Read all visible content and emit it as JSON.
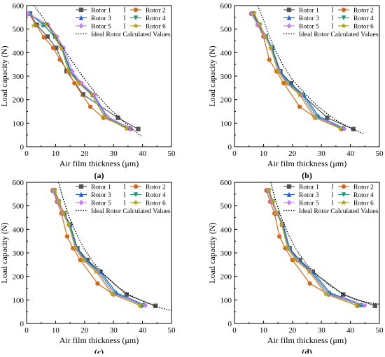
{
  "figure": {
    "panels_label_note": "",
    "colors": {
      "Rotor 1": "#555555",
      "Rotor 2": "#d2691e",
      "Rotor 3": "#1f5fd6",
      "Rotor 4": "#1e9a7a",
      "Rotor 5": "#c77ee6",
      "Rotor 6": "#b5a31c",
      "Ideal": "#000000"
    }
  },
  "chart_data": [
    {
      "type": "line",
      "panel_label": "(a)",
      "xlabel": "Air film thickness (μm)",
      "ylabel": "Load capacity (N)",
      "xlim": [
        0,
        50
      ],
      "ylim": [
        0,
        600
      ],
      "xticks": [
        0,
        10,
        20,
        30,
        40,
        50
      ],
      "yticks": [
        0,
        100,
        200,
        300,
        400,
        500,
        600
      ],
      "legend_position": "top-right",
      "series": [
        {
          "name": "Rotor 1",
          "marker": "square",
          "x": [
            1.2,
            3.5,
            7.2,
            10.2,
            13.8,
            19.5,
            31.5,
            38.5
          ],
          "y": [
            566,
            518,
            468,
            420,
            321,
            222,
            123,
            75
          ]
        },
        {
          "name": "Rotor 2",
          "marker": "circle",
          "x": [
            0.8,
            6.0,
            9.2,
            11.5,
            14.3,
            16.5,
            22.0,
            26.5,
            36.0
          ],
          "y": [
            566,
            465,
            420,
            370,
            320,
            270,
            170,
            123,
            75
          ]
        },
        {
          "name": "Rotor 3",
          "marker": "triangle-up",
          "x": [
            1.0,
            5.8,
            9.8,
            12.3,
            15.3,
            18.5,
            23.0,
            27.5,
            35.5
          ],
          "y": [
            566,
            518,
            468,
            420,
            320,
            270,
            220,
            130,
            80
          ]
        },
        {
          "name": "Rotor 4",
          "marker": "triangle-down",
          "x": [
            1.2,
            6.0,
            9.5,
            12.0,
            15.0,
            18.0,
            22.5,
            27.0,
            35.0
          ],
          "y": [
            566,
            518,
            468,
            420,
            320,
            270,
            220,
            128,
            77
          ]
        },
        {
          "name": "Rotor 5",
          "marker": "diamond",
          "x": [
            0.6,
            7.5,
            10.5,
            12.8,
            15.8,
            19.0,
            23.5,
            28.0,
            36.0
          ],
          "y": [
            566,
            518,
            468,
            420,
            320,
            270,
            220,
            125,
            77
          ]
        },
        {
          "name": "Rotor 6",
          "marker": "star",
          "x": [
            2.5,
            7.0,
            10.0,
            12.0,
            14.5,
            18.0,
            22.5,
            27.0,
            34.5
          ],
          "y": [
            515,
            520,
            468,
            420,
            320,
            270,
            220,
            125,
            77
          ]
        },
        {
          "name": "Ideal Rotor Calculated Values",
          "style": "dotted",
          "x": [
            2.5,
            5,
            8,
            11,
            14,
            17,
            20,
            24,
            28,
            32,
            36,
            39.5
          ],
          "y": [
            600,
            560,
            505,
            450,
            395,
            340,
            288,
            225,
            170,
            123,
            80,
            45
          ]
        }
      ]
    },
    {
      "type": "line",
      "panel_label": "(b)",
      "xlabel": "Air film thickness (μm)",
      "ylabel": "Load capacity (N)",
      "xlim": [
        0,
        50
      ],
      "ylim": [
        0,
        600
      ],
      "xticks": [
        0,
        10,
        20,
        30,
        40,
        50
      ],
      "yticks": [
        0,
        100,
        200,
        300,
        400,
        500,
        600
      ],
      "legend_position": "top-right",
      "series": [
        {
          "name": "Rotor 1",
          "marker": "square",
          "x": [
            6.5,
            8.5,
            10.8,
            13.0,
            15.8,
            19.5,
            23.5,
            32.0,
            41.0
          ],
          "y": [
            566,
            518,
            468,
            420,
            320,
            270,
            220,
            123,
            75
          ]
        },
        {
          "name": "Rotor 2",
          "marker": "circle",
          "x": [
            5.8,
            8.0,
            10.0,
            12.0,
            14.5,
            17.0,
            22.5,
            28.0,
            37.0
          ],
          "y": [
            566,
            518,
            468,
            370,
            320,
            270,
            170,
            123,
            75
          ]
        },
        {
          "name": "Rotor 3",
          "marker": "triangle-up",
          "x": [
            6.0,
            8.5,
            11.0,
            13.0,
            15.8,
            19.0,
            24.0,
            29.0,
            37.5
          ],
          "y": [
            566,
            518,
            468,
            420,
            320,
            270,
            220,
            130,
            80
          ]
        },
        {
          "name": "Rotor 4",
          "marker": "triangle-down",
          "x": [
            6.2,
            8.3,
            10.8,
            12.8,
            15.5,
            18.5,
            23.5,
            28.5,
            37.0
          ],
          "y": [
            566,
            518,
            468,
            420,
            320,
            270,
            220,
            128,
            77
          ]
        },
        {
          "name": "Rotor 5",
          "marker": "diamond",
          "x": [
            6.0,
            8.0,
            10.5,
            12.5,
            15.3,
            18.2,
            23.0,
            28.0,
            38.0
          ],
          "y": [
            566,
            518,
            468,
            420,
            320,
            270,
            220,
            125,
            77
          ]
        },
        {
          "name": "Rotor 6",
          "marker": "star",
          "x": [
            6.8,
            8.8,
            10.8,
            12.5,
            15.0,
            18.0,
            22.5,
            27.5,
            36.5
          ],
          "y": [
            566,
            518,
            468,
            420,
            320,
            270,
            220,
            125,
            77
          ]
        },
        {
          "name": "Ideal Rotor Calculated Values",
          "style": "dotted",
          "x": [
            8,
            10,
            12,
            14.5,
            17,
            20,
            24,
            28,
            32,
            36,
            40,
            44.5
          ],
          "y": [
            600,
            540,
            470,
            400,
            340,
            285,
            230,
            180,
            140,
            105,
            80,
            55
          ]
        }
      ]
    },
    {
      "type": "line",
      "panel_label": "(c)",
      "xlabel": "Air film thickness (μm)",
      "ylabel": "Load capacity (N)",
      "xlim": [
        0,
        50
      ],
      "ylim": [
        0,
        600
      ],
      "xticks": [
        0,
        10,
        20,
        30,
        40,
        50
      ],
      "yticks": [
        0,
        100,
        200,
        300,
        400,
        500,
        600
      ],
      "legend_position": "top-right",
      "series": [
        {
          "name": "Rotor 1",
          "marker": "square",
          "x": [
            9.5,
            11.0,
            13.0,
            15.0,
            17.5,
            21.0,
            25.5,
            34.5,
            44.5
          ],
          "y": [
            566,
            518,
            468,
            420,
            320,
            270,
            220,
            123,
            75
          ]
        },
        {
          "name": "Rotor 2",
          "marker": "circle",
          "x": [
            9.0,
            10.5,
            12.0,
            14.0,
            16.0,
            18.5,
            24.5,
            30.0,
            39.5
          ],
          "y": [
            566,
            518,
            468,
            370,
            320,
            270,
            170,
            123,
            75
          ]
        },
        {
          "name": "Rotor 3",
          "marker": "triangle-up",
          "x": [
            9.2,
            11.0,
            13.0,
            15.0,
            17.5,
            20.5,
            25.5,
            31.0,
            40.5
          ],
          "y": [
            566,
            518,
            468,
            420,
            320,
            270,
            220,
            130,
            80
          ]
        },
        {
          "name": "Rotor 4",
          "marker": "triangle-down",
          "x": [
            9.5,
            11.0,
            12.8,
            14.8,
            17.2,
            20.2,
            25.0,
            30.5,
            40.0
          ],
          "y": [
            566,
            518,
            468,
            420,
            320,
            270,
            220,
            128,
            77
          ]
        },
        {
          "name": "Rotor 5",
          "marker": "diamond",
          "x": [
            9.3,
            10.8,
            12.5,
            14.5,
            17.0,
            19.8,
            24.5,
            30.0,
            41.0
          ],
          "y": [
            566,
            518,
            468,
            420,
            320,
            270,
            220,
            125,
            77
          ]
        },
        {
          "name": "Rotor 6",
          "marker": "star",
          "x": [
            9.8,
            11.3,
            12.8,
            14.5,
            16.8,
            19.5,
            24.0,
            29.5,
            39.0
          ],
          "y": [
            566,
            518,
            468,
            420,
            320,
            270,
            220,
            125,
            77
          ]
        },
        {
          "name": "Ideal Rotor Calculated Values",
          "style": "dotted",
          "x": [
            11,
            12.5,
            14.5,
            17,
            20,
            23,
            27,
            31,
            35,
            40,
            45,
            50
          ],
          "y": [
            600,
            535,
            460,
            385,
            315,
            260,
            205,
            160,
            125,
            95,
            70,
            55
          ]
        }
      ]
    },
    {
      "type": "line",
      "panel_label": "(d)",
      "xlabel": "Air film thickness (μm)",
      "ylabel": "Load capacity (N)",
      "xlim": [
        0,
        50
      ],
      "ylim": [
        0,
        600
      ],
      "xticks": [
        0,
        10,
        20,
        30,
        40,
        50
      ],
      "yticks": [
        0,
        100,
        200,
        300,
        400,
        500,
        600
      ],
      "legend_position": "top-right",
      "series": [
        {
          "name": "Rotor 1",
          "marker": "square",
          "x": [
            11.5,
            13.0,
            14.8,
            16.5,
            19.0,
            22.5,
            27.0,
            37.5,
            48.5
          ],
          "y": [
            566,
            518,
            468,
            420,
            320,
            270,
            220,
            123,
            75
          ]
        },
        {
          "name": "Rotor 2",
          "marker": "circle",
          "x": [
            11.0,
            12.3,
            13.8,
            15.5,
            17.5,
            20.0,
            26.0,
            32.5,
            42.5
          ],
          "y": [
            566,
            518,
            468,
            370,
            320,
            270,
            170,
            123,
            75
          ]
        },
        {
          "name": "Rotor 3",
          "marker": "triangle-up",
          "x": [
            11.5,
            13.0,
            14.8,
            16.8,
            19.0,
            22.0,
            27.0,
            33.0,
            44.0
          ],
          "y": [
            566,
            518,
            468,
            420,
            320,
            270,
            220,
            130,
            80
          ]
        },
        {
          "name": "Rotor 4",
          "marker": "triangle-down",
          "x": [
            11.8,
            13.2,
            14.8,
            16.5,
            18.8,
            21.8,
            26.5,
            32.5,
            43.5
          ],
          "y": [
            566,
            518,
            468,
            420,
            320,
            270,
            220,
            128,
            77
          ]
        },
        {
          "name": "Rotor 5",
          "marker": "diamond",
          "x": [
            11.5,
            12.8,
            14.5,
            16.3,
            18.5,
            21.5,
            26.2,
            32.0,
            45.0
          ],
          "y": [
            566,
            518,
            468,
            420,
            320,
            270,
            220,
            125,
            77
          ]
        },
        {
          "name": "Rotor 6",
          "marker": "star",
          "x": [
            12.0,
            13.3,
            14.8,
            16.3,
            18.3,
            21.0,
            25.8,
            31.5,
            42.0
          ],
          "y": [
            566,
            518,
            468,
            420,
            320,
            270,
            220,
            125,
            77
          ]
        },
        {
          "name": "Ideal Rotor Calculated Values",
          "style": "dotted",
          "x": [
            12.5,
            14,
            16,
            18.5,
            21.5,
            25,
            29,
            33,
            37.5,
            42,
            46.5,
            50
          ],
          "y": [
            600,
            530,
            455,
            380,
            310,
            250,
            200,
            160,
            125,
            100,
            88,
            82
          ]
        }
      ]
    }
  ]
}
